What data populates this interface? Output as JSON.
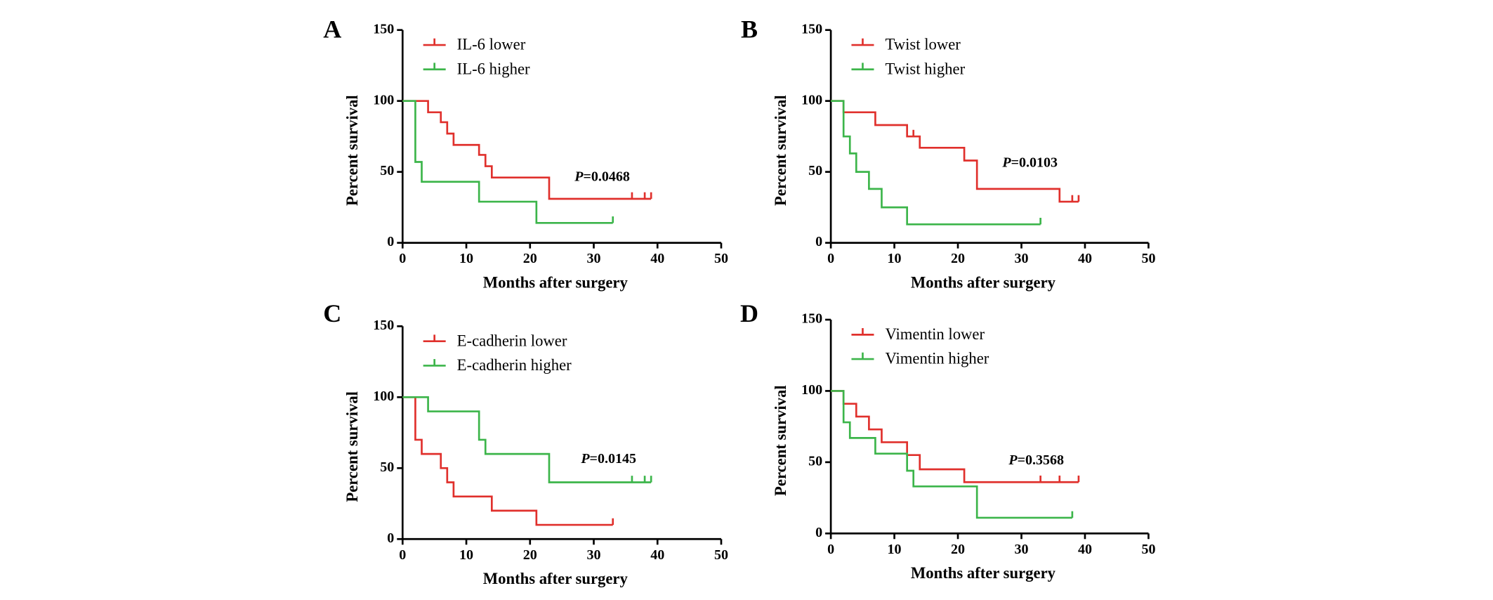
{
  "chart_data": [
    {
      "type": "step",
      "panel_label": "A",
      "xlabel": "Months after surgery",
      "ylabel": "Percent survival",
      "annotation_symbol": "P",
      "annotation": "=0.0468",
      "xlim": [
        0,
        50
      ],
      "ylim": [
        0,
        150
      ],
      "xticks": [
        0,
        10,
        20,
        30,
        40,
        50
      ],
      "yticks": [
        0,
        50,
        100,
        150
      ],
      "series": [
        {
          "name": "IL-6 lower",
          "color": "#e0302c",
          "x": [
            0,
            4,
            6,
            7,
            8,
            12,
            13,
            14,
            23,
            39
          ],
          "values": [
            100,
            92,
            85,
            77,
            69,
            62,
            54,
            46,
            31,
            31
          ],
          "censor_x": [
            36,
            38,
            39
          ],
          "censor_values": [
            31,
            31,
            31
          ]
        },
        {
          "name": "IL-6 higher",
          "color": "#3cb54a",
          "x": [
            0,
            2,
            3,
            12,
            21,
            33
          ],
          "values": [
            100,
            57,
            43,
            29,
            14,
            14
          ],
          "censor_x": [
            33
          ],
          "censor_values": [
            14
          ]
        }
      ]
    },
    {
      "type": "step",
      "panel_label": "B",
      "xlabel": "Months after surgery",
      "ylabel": "Percent survival",
      "annotation_symbol": "P",
      "annotation": "=0.0103",
      "xlim": [
        0,
        50
      ],
      "ylim": [
        0,
        150
      ],
      "xticks": [
        0,
        10,
        20,
        30,
        40,
        50
      ],
      "yticks": [
        0,
        50,
        100,
        150
      ],
      "series": [
        {
          "name": "Twist lower",
          "color": "#e0302c",
          "x": [
            0,
            2,
            7,
            12,
            14,
            21,
            23,
            36,
            39
          ],
          "values": [
            100,
            92,
            83,
            75,
            67,
            58,
            38,
            29,
            29
          ],
          "censor_x": [
            13,
            38,
            39
          ],
          "censor_values": [
            75,
            29,
            29
          ]
        },
        {
          "name": "Twist higher",
          "color": "#3cb54a",
          "x": [
            0,
            2,
            3,
            4,
            6,
            8,
            12,
            33
          ],
          "values": [
            100,
            75,
            63,
            50,
            38,
            25,
            13,
            13
          ],
          "censor_x": [
            33
          ],
          "censor_values": [
            13
          ]
        }
      ]
    },
    {
      "type": "step",
      "panel_label": "C",
      "xlabel": "Months after surgery",
      "ylabel": "Percent survival",
      "annotation_symbol": "P",
      "annotation": "=0.0145",
      "xlim": [
        0,
        50
      ],
      "ylim": [
        0,
        150
      ],
      "xticks": [
        0,
        10,
        20,
        30,
        40,
        50
      ],
      "yticks": [
        0,
        50,
        100,
        150
      ],
      "series": [
        {
          "name": "E-cadherin lower",
          "color": "#e0302c",
          "x": [
            0,
            2,
            3,
            6,
            7,
            8,
            14,
            21,
            33
          ],
          "values": [
            100,
            70,
            60,
            50,
            40,
            30,
            20,
            10,
            10
          ],
          "censor_x": [
            33
          ],
          "censor_values": [
            10
          ]
        },
        {
          "name": "E-cadherin higher",
          "color": "#3cb54a",
          "x": [
            0,
            4,
            12,
            13,
            23,
            39
          ],
          "values": [
            100,
            90,
            70,
            60,
            40,
            40
          ],
          "censor_x": [
            36,
            38,
            39
          ],
          "censor_values": [
            40,
            40,
            40
          ]
        }
      ]
    },
    {
      "type": "step",
      "panel_label": "D",
      "xlabel": "Months after surgery",
      "ylabel": "Percent survival",
      "annotation_symbol": "P",
      "annotation": "=0.3568",
      "xlim": [
        0,
        50
      ],
      "ylim": [
        0,
        150
      ],
      "xticks": [
        0,
        10,
        20,
        30,
        40,
        50
      ],
      "yticks": [
        0,
        50,
        100,
        150
      ],
      "series": [
        {
          "name": "Vimentin lower",
          "color": "#e0302c",
          "x": [
            0,
            2,
            4,
            6,
            8,
            12,
            14,
            21,
            39
          ],
          "values": [
            100,
            91,
            82,
            73,
            64,
            55,
            45,
            36,
            36
          ],
          "censor_x": [
            33,
            36,
            39
          ],
          "censor_values": [
            36,
            36,
            36
          ]
        },
        {
          "name": "Vimentin higher",
          "color": "#3cb54a",
          "x": [
            0,
            2,
            3,
            7,
            12,
            13,
            23,
            38
          ],
          "values": [
            100,
            78,
            67,
            56,
            44,
            33,
            11,
            11
          ],
          "censor_x": [
            38
          ],
          "censor_values": [
            11
          ]
        }
      ]
    }
  ]
}
